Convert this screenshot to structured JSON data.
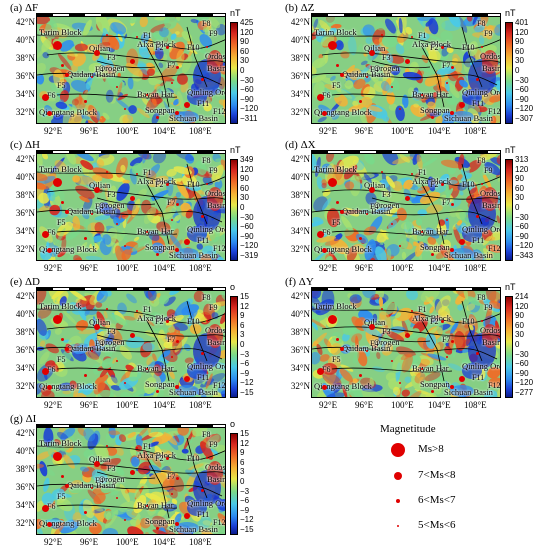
{
  "latitude_labels": [
    "42°N",
    "40°N",
    "38°N",
    "36°N",
    "34°N",
    "32°N"
  ],
  "longitude_labels": [
    "92°E",
    "96°E",
    "100°E",
    "104°E",
    "108°E"
  ],
  "place_names": {
    "tarim": "Tarim Block",
    "qilian": "Qilian",
    "orogen": "Orogen",
    "qaidam": "Qaidam Basin",
    "alxa": "Alxa Block",
    "ordos": "Ordos",
    "basin": "Basin",
    "bayanhar": "Bayan Har",
    "qinling": "Qinling Orogen",
    "qiangtang": "Qiangtang Block",
    "songpan": "Songpan",
    "sichuan": "Sichuan Basin",
    "faults": [
      "F1",
      "F2",
      "F3",
      "F4",
      "F5",
      "F6",
      "F7",
      "F8",
      "F9",
      "F10",
      "F11",
      "F12"
    ]
  },
  "panels": [
    {
      "label": "(a) ΔF",
      "unit": "nT",
      "ticks": [
        "425",
        "120",
        "90",
        "60",
        "30",
        "0",
        "−30",
        "−60",
        "−90",
        "−120",
        "−311"
      ]
    },
    {
      "label": "(b) ΔZ",
      "unit": "nT",
      "ticks": [
        "401",
        "120",
        "90",
        "60",
        "30",
        "0",
        "−30",
        "−60",
        "−90",
        "−120",
        "−307"
      ]
    },
    {
      "label": "(c) ΔH",
      "unit": "nT",
      "ticks": [
        "349",
        "120",
        "90",
        "60",
        "30",
        "0",
        "−30",
        "−60",
        "−90",
        "−120",
        "−319"
      ]
    },
    {
      "label": "(d) ΔX",
      "unit": "nT",
      "ticks": [
        "313",
        "120",
        "90",
        "60",
        "30",
        "0",
        "−30",
        "−60",
        "−90",
        "−120",
        "−343"
      ]
    },
    {
      "label": "(e) ΔD",
      "unit": "o",
      "ticks": [
        "15",
        "12",
        "9",
        "6",
        "3",
        "0",
        "−3",
        "−6",
        "−9",
        "−12",
        "−15"
      ]
    },
    {
      "label": "(f) ΔY",
      "unit": "nT",
      "ticks": [
        "214",
        "120",
        "90",
        "60",
        "30",
        "0",
        "−30",
        "−60",
        "−90",
        "−120",
        "−277"
      ]
    },
    {
      "label": "(g) ΔI",
      "unit": "o",
      "ticks": [
        "15",
        "12",
        "9",
        "6",
        "3",
        "0",
        "−3",
        "−6",
        "−9",
        "−12",
        "−15"
      ]
    }
  ],
  "legend": {
    "title": "Magnetitude",
    "items": [
      {
        "label": "Ms>8"
      },
      {
        "label": "7<Ms<8"
      },
      {
        "label": "6<Ms<7"
      },
      {
        "label": "5<Ms<6"
      }
    ]
  },
  "colors": {
    "quake": "#e00000",
    "fault": "#000000"
  }
}
